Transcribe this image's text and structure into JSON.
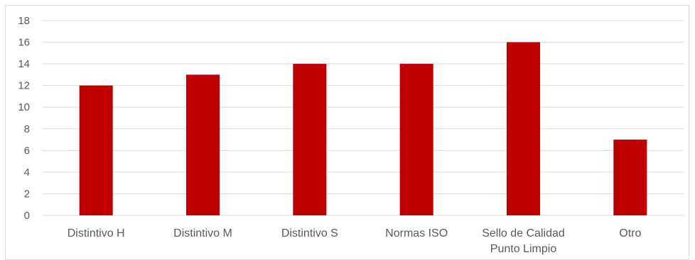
{
  "chart_data": {
    "type": "bar",
    "title": "",
    "xlabel": "",
    "ylabel": "",
    "categories": [
      [
        "Distintivo H"
      ],
      [
        "Distintivo M"
      ],
      [
        "Distintivo S"
      ],
      [
        "Normas ISO"
      ],
      [
        "Sello de Calidad",
        "Punto Limpio"
      ],
      [
        "Otro"
      ]
    ],
    "values": [
      12,
      13,
      14,
      14,
      16,
      7
    ],
    "ylim": [
      0,
      18
    ],
    "yticks": [
      0,
      2,
      4,
      6,
      8,
      10,
      12,
      14,
      16,
      18
    ],
    "grid": true,
    "legend": "none",
    "colors": {
      "bar": "#c00000",
      "grid": "#d9d9d9",
      "text": "#595959"
    }
  }
}
